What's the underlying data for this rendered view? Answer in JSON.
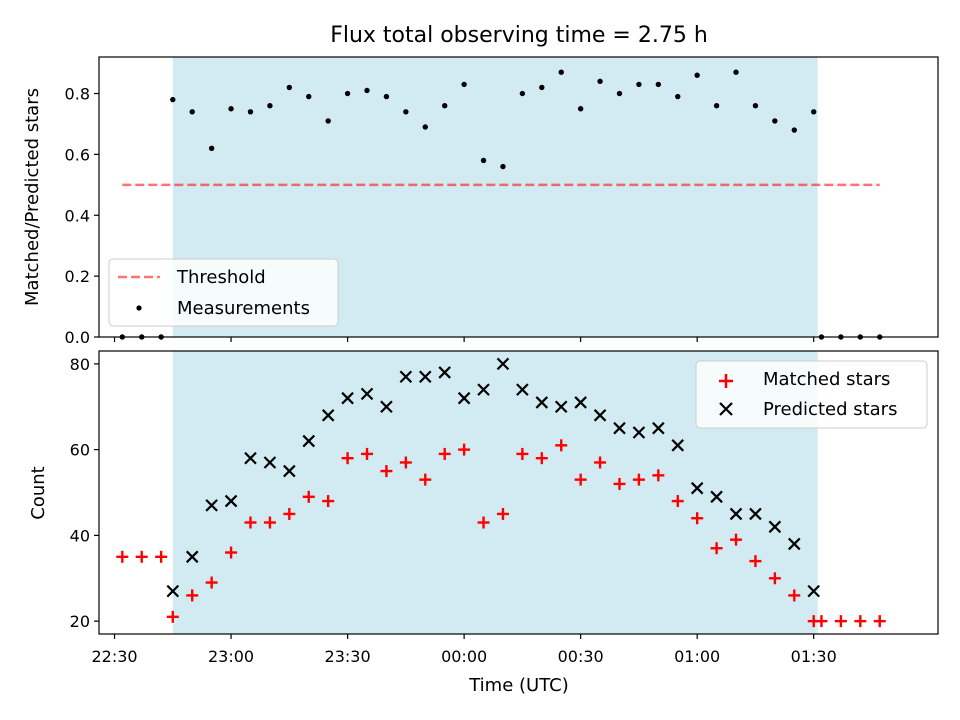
{
  "chart_data": [
    {
      "type": "scatter",
      "title": "Flux total observing time = 2.75 h",
      "ylabel": "Matched/Predicted stars",
      "xlim": [
        "22:26",
        "02:02"
      ],
      "ylim": [
        0,
        0.92
      ],
      "yticks": [
        0.0,
        0.2,
        0.4,
        0.6,
        0.8
      ],
      "ytick_labels": [
        "0.0",
        "0.2",
        "0.4",
        "0.6",
        "0.8"
      ],
      "xticks": [
        "22:30",
        "23:00",
        "23:30",
        "00:00",
        "00:30",
        "01:00",
        "01:30"
      ],
      "shaded_span": [
        "22:45",
        "01:31"
      ],
      "shade_color": "#add8e6",
      "legend_position": "lower-left",
      "threshold": {
        "name": "Threshold",
        "value": 0.5,
        "x_range": [
          "22:32",
          "01:47"
        ],
        "color": "#ff0000"
      },
      "series": [
        {
          "name": "Measurements",
          "color": "#000000",
          "marker": "dot",
          "x": [
            "22:32",
            "22:37",
            "22:42",
            "22:45",
            "22:50",
            "22:55",
            "23:00",
            "23:05",
            "23:10",
            "23:15",
            "23:20",
            "23:25",
            "23:30",
            "23:35",
            "23:40",
            "23:45",
            "23:50",
            "23:55",
            "00:00",
            "00:05",
            "00:10",
            "00:15",
            "00:20",
            "00:25",
            "00:30",
            "00:35",
            "00:40",
            "00:45",
            "00:50",
            "00:55",
            "01:00",
            "01:05",
            "01:10",
            "01:15",
            "01:20",
            "01:25",
            "01:30",
            "01:32",
            "01:37",
            "01:42",
            "01:47"
          ],
          "y": [
            0.0,
            0.0,
            0.0,
            0.78,
            0.74,
            0.62,
            0.75,
            0.74,
            0.76,
            0.82,
            0.79,
            0.71,
            0.8,
            0.81,
            0.79,
            0.74,
            0.69,
            0.76,
            0.83,
            0.58,
            0.56,
            0.8,
            0.82,
            0.87,
            0.75,
            0.84,
            0.8,
            0.83,
            0.83,
            0.79,
            0.86,
            0.76,
            0.87,
            0.76,
            0.71,
            0.68,
            0.74,
            0.0,
            0.0,
            0.0,
            0.0
          ]
        }
      ]
    },
    {
      "type": "scatter",
      "xlabel": "Time (UTC)",
      "ylabel": "Count",
      "xlim": [
        "22:26",
        "02:02"
      ],
      "ylim": [
        17,
        83
      ],
      "yticks": [
        20,
        40,
        60,
        80
      ],
      "ytick_labels": [
        "20",
        "40",
        "60",
        "80"
      ],
      "xticks": [
        "22:30",
        "23:00",
        "23:30",
        "00:00",
        "00:30",
        "01:00",
        "01:30"
      ],
      "xtick_labels": [
        "22:30",
        "23:00",
        "23:30",
        "00:00",
        "00:30",
        "01:00",
        "01:30"
      ],
      "shaded_span": [
        "22:45",
        "01:31"
      ],
      "shade_color": "#add8e6",
      "legend_position": "upper-right",
      "series": [
        {
          "name": "Matched stars",
          "color": "#ff0000",
          "marker": "plus",
          "x": [
            "22:32",
            "22:37",
            "22:42",
            "22:45",
            "22:50",
            "22:55",
            "23:00",
            "23:05",
            "23:10",
            "23:15",
            "23:20",
            "23:25",
            "23:30",
            "23:35",
            "23:40",
            "23:45",
            "23:50",
            "23:55",
            "00:00",
            "00:05",
            "00:10",
            "00:15",
            "00:20",
            "00:25",
            "00:30",
            "00:35",
            "00:40",
            "00:45",
            "00:50",
            "00:55",
            "01:00",
            "01:05",
            "01:10",
            "01:15",
            "01:20",
            "01:25",
            "01:30",
            "01:32",
            "01:37",
            "01:42",
            "01:47"
          ],
          "y": [
            35,
            35,
            35,
            21,
            26,
            29,
            36,
            43,
            43,
            45,
            49,
            48,
            58,
            59,
            55,
            57,
            53,
            59,
            60,
            43,
            45,
            59,
            58,
            61,
            53,
            57,
            52,
            53,
            54,
            48,
            44,
            37,
            39,
            34,
            30,
            26,
            20,
            20,
            20,
            20,
            20
          ]
        },
        {
          "name": "Predicted stars",
          "color": "#000000",
          "marker": "x",
          "x": [
            "22:45",
            "22:50",
            "22:55",
            "23:00",
            "23:05",
            "23:10",
            "23:15",
            "23:20",
            "23:25",
            "23:30",
            "23:35",
            "23:40",
            "23:45",
            "23:50",
            "23:55",
            "00:00",
            "00:05",
            "00:10",
            "00:15",
            "00:20",
            "00:25",
            "00:30",
            "00:35",
            "00:40",
            "00:45",
            "00:50",
            "00:55",
            "01:00",
            "01:05",
            "01:10",
            "01:15",
            "01:20",
            "01:25",
            "01:30"
          ],
          "y": [
            27,
            35,
            47,
            48,
            58,
            57,
            55,
            62,
            68,
            72,
            73,
            70,
            77,
            77,
            78,
            72,
            74,
            80,
            74,
            71,
            70,
            71,
            68,
            65,
            64,
            65,
            61,
            51,
            49,
            45,
            45,
            42,
            38,
            27
          ]
        }
      ]
    }
  ]
}
